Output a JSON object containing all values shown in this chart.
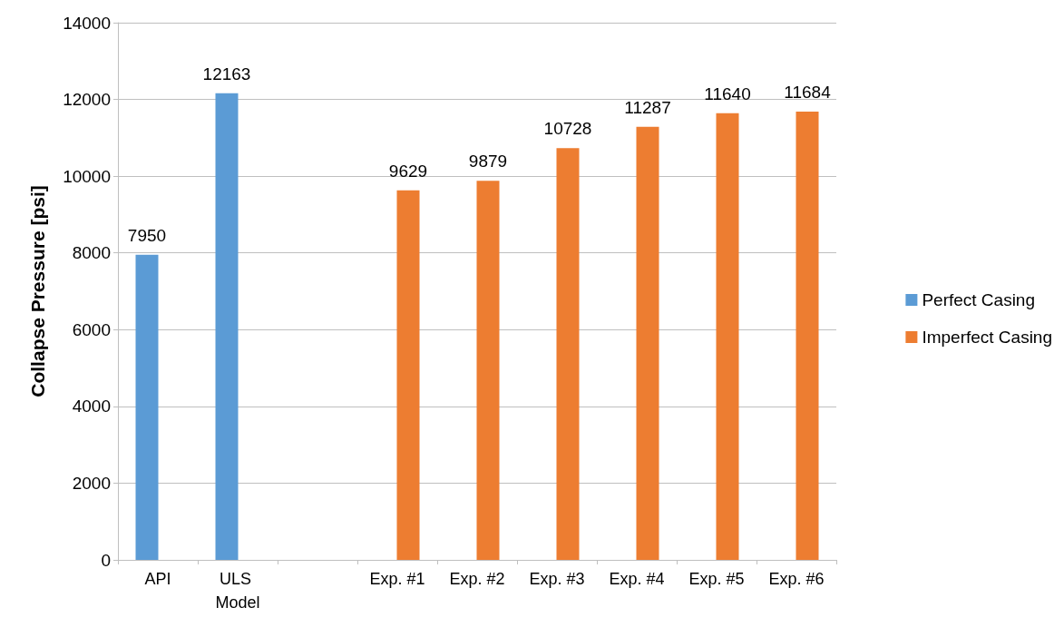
{
  "chart_data": {
    "type": "bar",
    "ylabel": "Collapse Pressure [psi]",
    "categories": [
      "API",
      "ULS Model",
      null,
      "Exp. #1",
      "Exp. #2",
      "Exp. #3",
      "Exp. #4",
      "Exp. #5",
      "Exp. #6"
    ],
    "series": [
      {
        "name": "Perfect Casing",
        "color": "#5b9bd5",
        "values": [
          7950,
          12163,
          null,
          null,
          null,
          null,
          null,
          null,
          null
        ]
      },
      {
        "name": "Imperfect Casing",
        "color": "#ed7d31",
        "values": [
          null,
          null,
          null,
          9629,
          9879,
          10728,
          11287,
          11640,
          11684
        ]
      }
    ],
    "ylim": [
      0,
      14000
    ],
    "yticks": [
      0,
      2000,
      4000,
      6000,
      8000,
      10000,
      12000,
      14000
    ],
    "grid": "y",
    "legend": "right",
    "data_labels": true
  }
}
